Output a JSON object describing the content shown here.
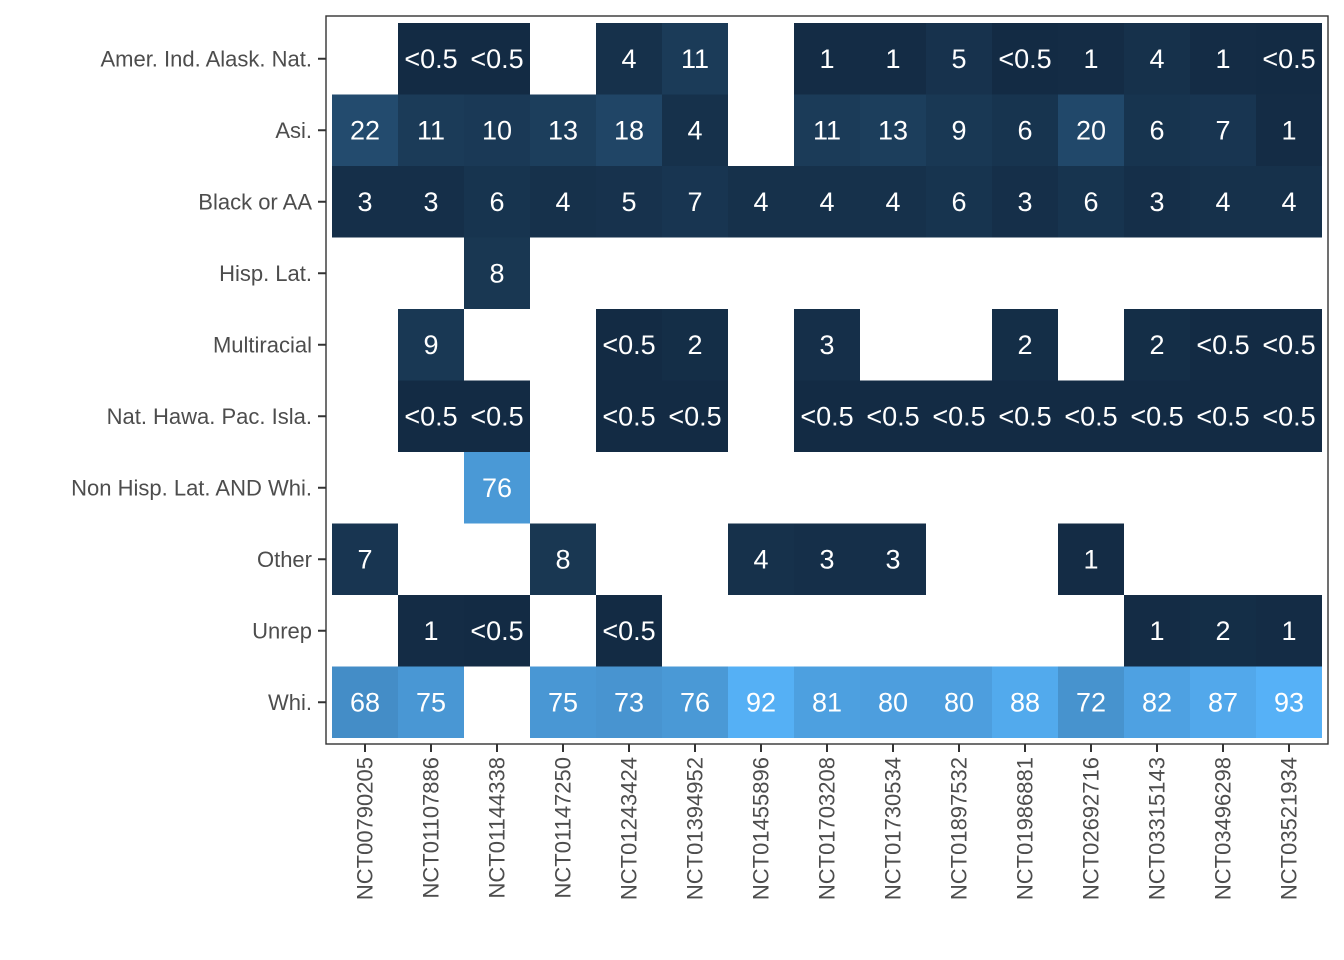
{
  "chart_data": {
    "type": "heatmap",
    "title": "",
    "xlabel": "",
    "ylabel": "",
    "x": [
      "NCT00790205",
      "NCT01107886",
      "NCT01144338",
      "NCT01147250",
      "NCT01243424",
      "NCT01394952",
      "NCT01455896",
      "NCT01703208",
      "NCT01730534",
      "NCT01897532",
      "NCT01986881",
      "NCT02692716",
      "NCT03315143",
      "NCT03496298",
      "NCT03521934"
    ],
    "y": [
      "Amer. Ind. Alask. Nat.",
      "Asi.",
      "Black or AA",
      "Hisp. Lat.",
      "Multiracial",
      "Nat. Hawa. Pac. Isla.",
      "Non Hisp. Lat. AND Whi.",
      "Other",
      "Unrep",
      "Whi."
    ],
    "values": [
      [
        null,
        0.3,
        0.3,
        null,
        4,
        11,
        null,
        1,
        1,
        5,
        0.3,
        1,
        4,
        1,
        0.3
      ],
      [
        22,
        11,
        10,
        13,
        18,
        4,
        null,
        11,
        13,
        9,
        6,
        20,
        6,
        7,
        1
      ],
      [
        3,
        3,
        6,
        4,
        5,
        7,
        4,
        4,
        4,
        6,
        3,
        6,
        3,
        4,
        4
      ],
      [
        null,
        null,
        8,
        null,
        null,
        null,
        null,
        null,
        null,
        null,
        null,
        null,
        null,
        null,
        null
      ],
      [
        null,
        9,
        null,
        null,
        0.3,
        2,
        null,
        3,
        null,
        null,
        2,
        null,
        2,
        0.3,
        0.3
      ],
      [
        null,
        0.3,
        0.3,
        null,
        0.3,
        0.3,
        null,
        0.3,
        0.3,
        0.3,
        0.3,
        0.3,
        0.3,
        0.3,
        0.3
      ],
      [
        null,
        null,
        76,
        null,
        null,
        null,
        null,
        null,
        null,
        null,
        null,
        null,
        null,
        null,
        null
      ],
      [
        7,
        null,
        null,
        8,
        null,
        null,
        4,
        3,
        3,
        null,
        null,
        1,
        null,
        null,
        null
      ],
      [
        null,
        1,
        0.3,
        null,
        0.3,
        null,
        null,
        null,
        null,
        null,
        null,
        null,
        1,
        2,
        1
      ],
      [
        68,
        75,
        null,
        75,
        73,
        76,
        92,
        81,
        80,
        80,
        88,
        72,
        82,
        87,
        93
      ]
    ],
    "labels": [
      [
        "",
        "<0.5",
        "<0.5",
        "",
        "4",
        "11",
        "",
        "1",
        "1",
        "5",
        "<0.5",
        "1",
        "4",
        "1",
        "<0.5"
      ],
      [
        "22",
        "11",
        "10",
        "13",
        "18",
        "4",
        "",
        "11",
        "13",
        "9",
        "6",
        "20",
        "6",
        "7",
        "1"
      ],
      [
        "3",
        "3",
        "6",
        "4",
        "5",
        "7",
        "4",
        "4",
        "4",
        "6",
        "3",
        "6",
        "3",
        "4",
        "4"
      ],
      [
        "",
        "",
        "8",
        "",
        "",
        "",
        "",
        "",
        "",
        "",
        "",
        "",
        "",
        "",
        ""
      ],
      [
        "",
        "9",
        "",
        "",
        "<0.5",
        "2",
        "",
        "3",
        "",
        "",
        "2",
        "",
        "2",
        "<0.5",
        "<0.5"
      ],
      [
        "",
        "<0.5",
        "<0.5",
        "",
        "<0.5",
        "<0.5",
        "",
        "<0.5",
        "<0.5",
        "<0.5",
        "<0.5",
        "<0.5",
        "<0.5",
        "<0.5",
        "<0.5"
      ],
      [
        "",
        "",
        "76",
        "",
        "",
        "",
        "",
        "",
        "",
        "",
        "",
        "",
        "",
        "",
        ""
      ],
      [
        "7",
        "",
        "",
        "8",
        "",
        "",
        "4",
        "3",
        "3",
        "",
        "",
        "1",
        "",
        "",
        ""
      ],
      [
        "",
        "1",
        "<0.5",
        "",
        "<0.5",
        "",
        "",
        "",
        "",
        "",
        "",
        "",
        "1",
        "2",
        "1"
      ],
      [
        "68",
        "75",
        "",
        "75",
        "73",
        "76",
        "92",
        "81",
        "80",
        "80",
        "88",
        "72",
        "82",
        "87",
        "93"
      ]
    ],
    "color_low": "#132b43",
    "color_high": "#56b1f7",
    "value_range": [
      0,
      93
    ],
    "legend": "none",
    "grid": false
  }
}
